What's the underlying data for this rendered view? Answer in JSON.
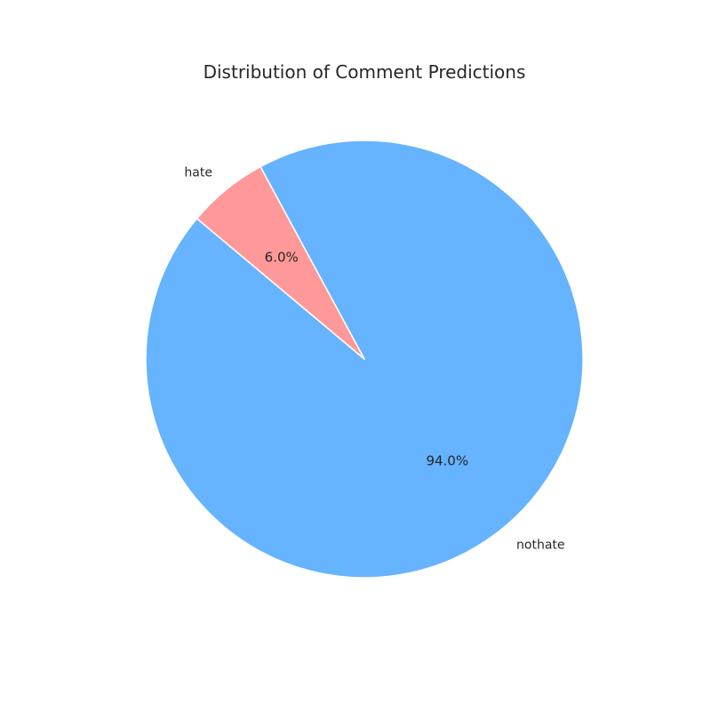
{
  "chart_data": {
    "type": "pie",
    "title": "Distribution of Comment Predictions",
    "slices": [
      {
        "label": "nothate",
        "value": 94.0,
        "pct_label": "94.0%",
        "color": "#66b3ff"
      },
      {
        "label": "hate",
        "value": 6.0,
        "pct_label": "6.0%",
        "color": "#ff9999"
      }
    ],
    "start_angle_deg": 140,
    "edge_color": "#ffffff"
  }
}
